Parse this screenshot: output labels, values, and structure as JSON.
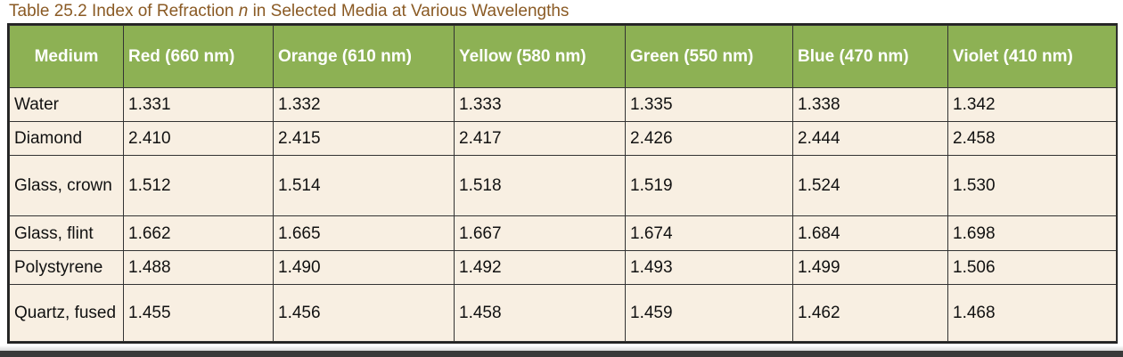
{
  "caption": {
    "prefix": "Table 25.2 Index of Refraction ",
    "variable": "n",
    "suffix": " in Selected Media at Various Wavelengths"
  },
  "table": {
    "headers": [
      "Medium",
      "Red (660 nm)",
      "Orange (610 nm)",
      "Yellow (580 nm)",
      "Green (550 nm)",
      "Blue (470 nm)",
      "Violet (410 nm)"
    ],
    "rows": [
      [
        "Water",
        "1.331",
        "1.332",
        "1.333",
        "1.335",
        "1.338",
        "1.342"
      ],
      [
        "Diamond",
        "2.410",
        "2.415",
        "2.417",
        "2.426",
        "2.444",
        "2.458"
      ],
      [
        "Glass, crown",
        "1.512",
        "1.514",
        "1.518",
        "1.519",
        "1.524",
        "1.530"
      ],
      [
        "Glass, flint",
        "1.662",
        "1.665",
        "1.667",
        "1.674",
        "1.684",
        "1.698"
      ],
      [
        "Polystyrene",
        "1.488",
        "1.490",
        "1.492",
        "1.493",
        "1.499",
        "1.506"
      ],
      [
        "Quartz, fused",
        "1.455",
        "1.456",
        "1.458",
        "1.459",
        "1.462",
        "1.468"
      ]
    ]
  },
  "colors": {
    "header_bg": "#8db154",
    "body_bg": "#f8efe2",
    "caption_text": "#8a5a24"
  }
}
